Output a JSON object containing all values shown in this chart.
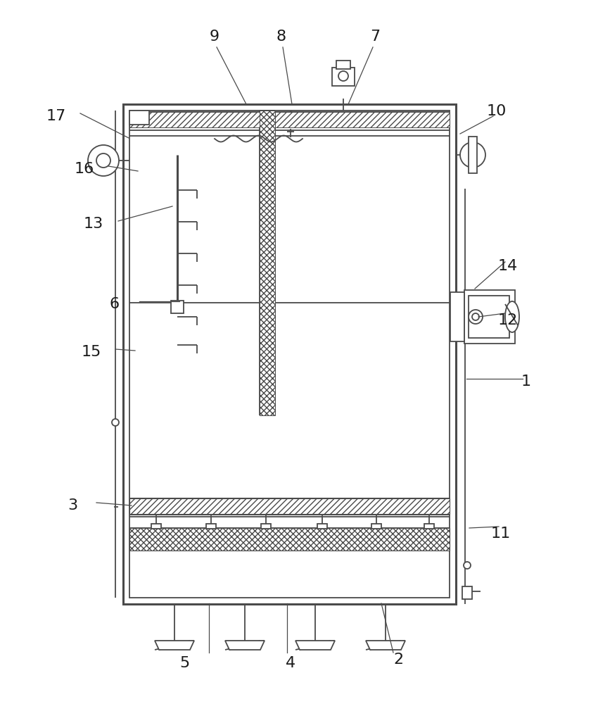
{
  "bg_color": "#ffffff",
  "lc": "#4a4a4a",
  "lw": 1.3,
  "tlw": 2.2,
  "label_fontsize": 16,
  "label_color": "#1a1a1a",
  "OX1": 175,
  "OY1": 148,
  "OX2": 648,
  "OY2": 858
}
